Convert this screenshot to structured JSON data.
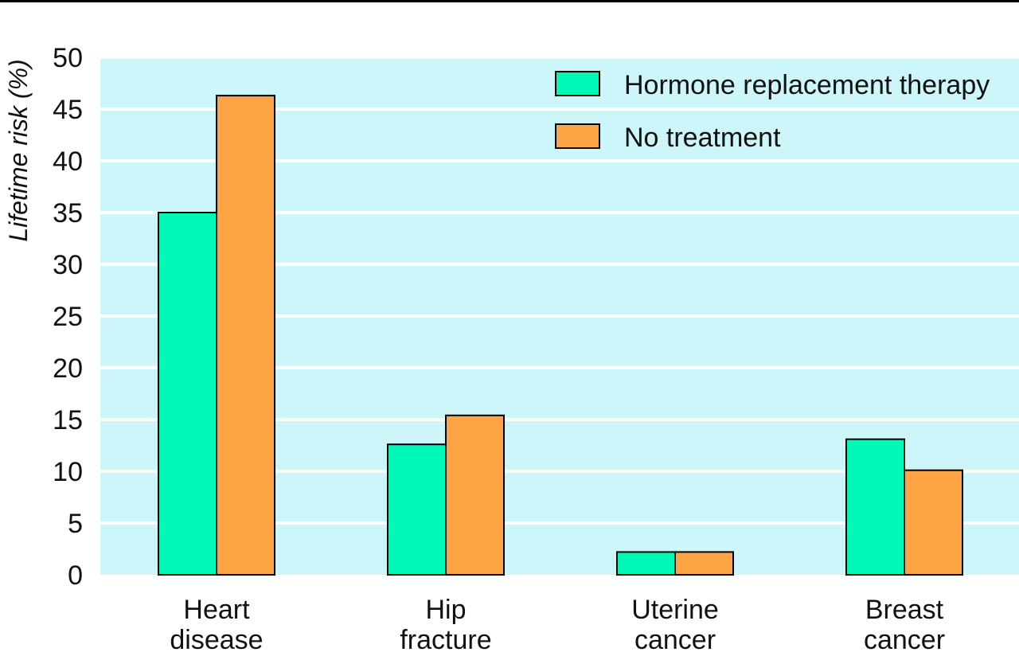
{
  "chart_data": {
    "type": "bar",
    "ylabel": "Lifetime risk (%)",
    "ylim": [
      0,
      50
    ],
    "yticks": [
      0,
      5,
      10,
      15,
      20,
      25,
      30,
      35,
      40,
      45,
      50
    ],
    "grid": true,
    "legend_position": "top-right",
    "categories": [
      [
        "Heart",
        "disease"
      ],
      [
        "Hip",
        "fracture"
      ],
      [
        "Uterine",
        "cancer"
      ],
      [
        "Breast",
        "cancer"
      ]
    ],
    "series": [
      {
        "name": "Hormone replacement therapy",
        "color": "#00f9b7",
        "values": [
          35,
          12.6,
          2.2,
          13.1
        ]
      },
      {
        "name": "No treatment",
        "color": "#ffa444",
        "values": [
          46.3,
          15.4,
          2.2,
          10.1
        ]
      }
    ],
    "plot_background": "#ccf6f9",
    "grid_color": "#ffffff"
  }
}
